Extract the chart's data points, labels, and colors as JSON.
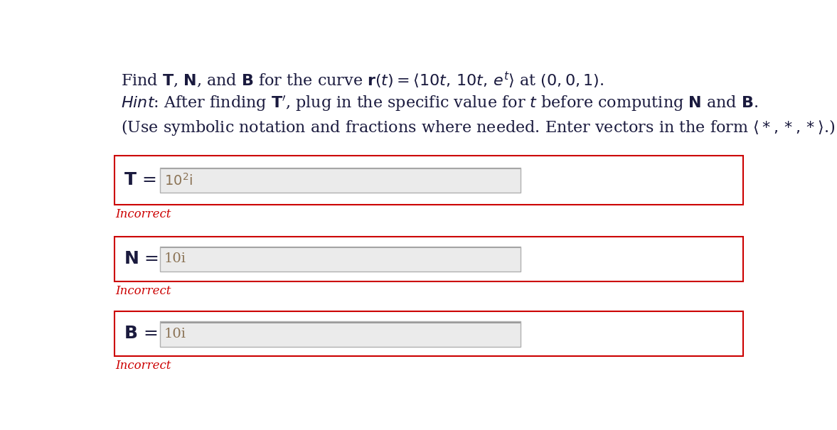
{
  "background_color": "#ffffff",
  "text_color": "#1a1a3e",
  "line1_parts": [
    {
      "text": "Find ",
      "bold": false,
      "italic": false
    },
    {
      "text": "T",
      "bold": true,
      "italic": false
    },
    {
      "text": ", ",
      "bold": false,
      "italic": false
    },
    {
      "text": "N",
      "bold": true,
      "italic": false
    },
    {
      "text": ", and ",
      "bold": false,
      "italic": false
    },
    {
      "text": "B",
      "bold": true,
      "italic": false
    },
    {
      "text": " for the curve ",
      "bold": false,
      "italic": false
    },
    {
      "text": "r",
      "bold": true,
      "italic": false
    },
    {
      "text": "(",
      "bold": false,
      "italic": false
    },
    {
      "text": "t",
      "bold": false,
      "italic": true
    },
    {
      "text": ") = ",
      "bold": false,
      "italic": false
    }
  ],
  "hint_parts": [
    {
      "text": "Hint",
      "bold": false,
      "italic": true
    },
    {
      "text": ": After finding ",
      "bold": false,
      "italic": false
    },
    {
      "text": "T",
      "bold": true,
      "italic": false
    },
    {
      "text": "′",
      "bold": false,
      "italic": false
    },
    {
      "text": ", plug in the specific value for ",
      "bold": false,
      "italic": false
    },
    {
      "text": "t",
      "bold": false,
      "italic": true
    },
    {
      "text": " before computing ",
      "bold": false,
      "italic": false
    },
    {
      "text": "N",
      "bold": true,
      "italic": false
    },
    {
      "text": " and ",
      "bold": false,
      "italic": false
    },
    {
      "text": "B",
      "bold": true,
      "italic": false
    },
    {
      "text": ".",
      "bold": false,
      "italic": false
    }
  ],
  "note_text": "(Use symbolic notation and fractions where needed. Enter vectors in the form ⟨*, *, *⟩.)",
  "labels": [
    "T",
    "N",
    "B"
  ],
  "answers": [
    "10²i",
    "10i",
    "10i"
  ],
  "answer_color": "#8b7355",
  "incorrect_text": "Incorrect",
  "incorrect_color": "#cc0000",
  "box_border_color": "#cc0000",
  "answer_box_bg": "#ebebeb",
  "answer_box_border_top": "#b0b0b0",
  "answer_box_border_bottom": "#d8d8d8",
  "outer_box_bg": "#ffffff",
  "text_fontsize": 16,
  "answer_fontsize": 14,
  "incorrect_fontsize": 12,
  "label_fontsize": 18
}
